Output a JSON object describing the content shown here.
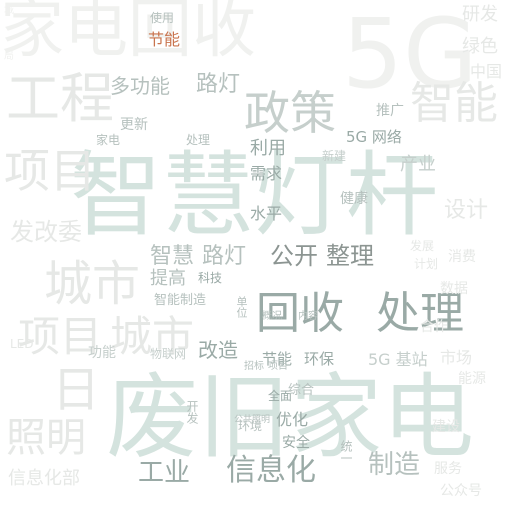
{
  "word_cloud": {
    "words": [
      "家电回收",
      "5G",
      "智能",
      "工程",
      "政策",
      "绿色",
      "研发",
      "中国",
      "多功能",
      "路灯",
      "节能",
      "使用",
      "智慧灯杆",
      "项目",
      "城市",
      "发改委",
      "利用",
      "需求",
      "水平",
      "推广",
      "新建",
      "健康",
      "设计",
      "公开",
      "整理",
      "回收",
      "处理",
      "智慧",
      "路灯",
      "提高",
      "科技",
      "智能制造",
      "改造",
      "节能",
      "环保",
      "5G 基站",
      "废旧家电",
      "照明",
      "日",
      "工业",
      "信息化",
      "制造",
      "信息化部",
      "功能",
      "物联网",
      "全面",
      "优化",
      "安全",
      "开发",
      "环境",
      "综合",
      "统一",
      "公众号",
      "LED",
      "更新",
      "5G 网络",
      "家电",
      "处理",
      "产业",
      "概况",
      "内容",
      "招标",
      "项目",
      "单位",
      "数据",
      "城",
      "局",
      "公共照明",
      "发展",
      "计划",
      "合作",
      "市场",
      "建设",
      "消费",
      "能源",
      "服务"
    ]
  }
}
